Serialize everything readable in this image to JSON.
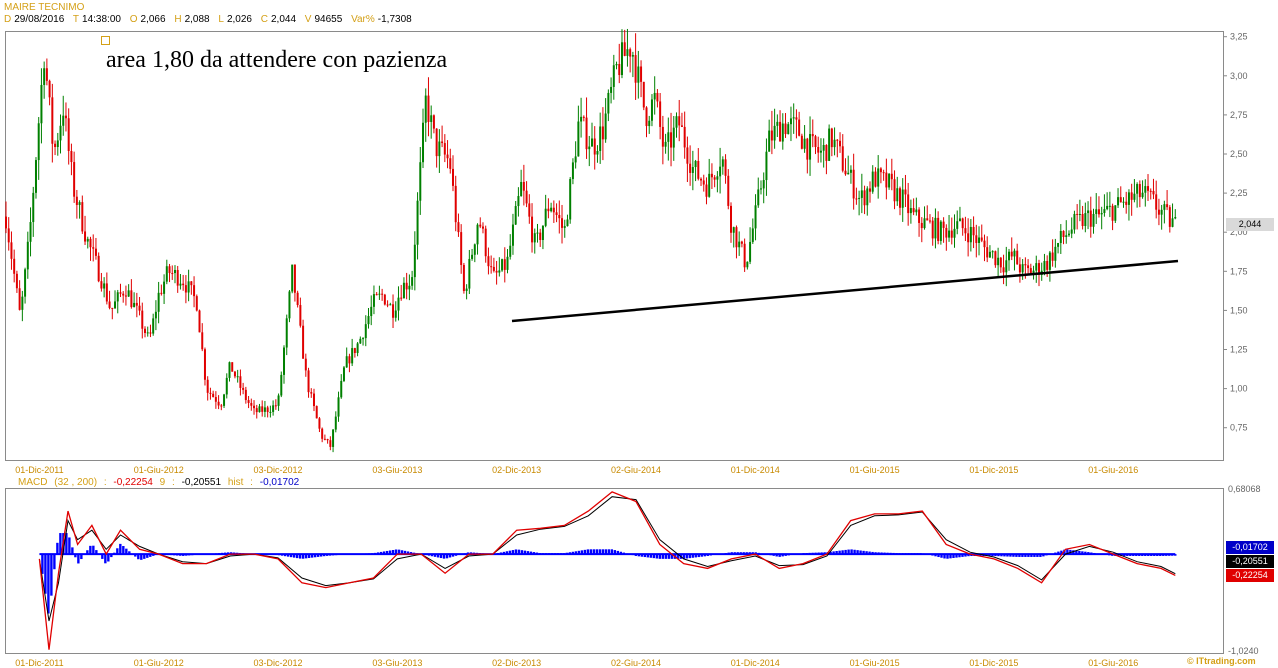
{
  "header": {
    "title": "MAIRE TECNIMO",
    "fields": [
      {
        "key": "D",
        "value": "29/08/2016"
      },
      {
        "key": "T",
        "value": "14:38:00"
      },
      {
        "key": "O",
        "value": "2,066"
      },
      {
        "key": "H",
        "value": "2,088"
      },
      {
        "key": "L",
        "value": "2,026"
      },
      {
        "key": "C",
        "value": "2,044"
      },
      {
        "key": "V",
        "value": "94655"
      },
      {
        "key": "Var%",
        "value": "-1,7308"
      }
    ]
  },
  "annotation": "area 1,80 da attendere con pazienza",
  "last_price_label": "2,044",
  "macd_header": {
    "name": "MACD",
    "params": "(32 , 200)",
    "macd_value": "-0,22254",
    "signal_name": "9",
    "signal_value": "-0,20551",
    "hist_name": "hist",
    "hist_value": "-0,01702"
  },
  "macd_badges": {
    "hist": "-0,01702",
    "signal": "-0,20551",
    "macd": "-0,22254"
  },
  "copyright": "© ITtrading.com",
  "colors": {
    "up": "#008000",
    "down": "#e00000",
    "trendline": "#000000",
    "macd": "#e00000",
    "signal": "#000000",
    "hist": "#0000ff"
  },
  "chart_data": [
    {
      "type": "line",
      "series_style": "candlestick",
      "ylim": [
        0.55,
        3.28
      ],
      "yticks": [
        "3,25",
        "3,00",
        "2,75",
        "2,50",
        "2,25",
        "2,00",
        "1,75",
        "1,50",
        "1,25",
        "1,00",
        "0,75"
      ],
      "ytick_values": [
        3.25,
        3.0,
        2.75,
        2.5,
        2.25,
        2.0,
        1.75,
        1.5,
        1.25,
        1.0,
        0.75
      ],
      "xlabels": [
        "01-Dic-2011",
        "01-Giu-2012",
        "03-Dic-2012",
        "03-Giu-2013",
        "02-Dic-2013",
        "02-Giu-2014",
        "01-Dic-2014",
        "01-Giu-2015",
        "01-Dic-2015",
        "01-Giu-2016"
      ],
      "xlabel_t": [
        0.0,
        0.5,
        1.0,
        1.5,
        2.0,
        2.5,
        3.0,
        3.5,
        4.0,
        4.5
      ],
      "xlim": [
        -0.14,
        4.96
      ],
      "x": [
        -0.14,
        -0.08,
        -0.04,
        0.02,
        0.06,
        0.1,
        0.14,
        0.2,
        0.26,
        0.3,
        0.36,
        0.42,
        0.46,
        0.5,
        0.54,
        0.6,
        0.66,
        0.7,
        0.76,
        0.8,
        0.86,
        0.9,
        0.96,
        1.0,
        1.06,
        1.12,
        1.18,
        1.22,
        1.28,
        1.34,
        1.4,
        1.44,
        1.48,
        1.52,
        1.56,
        1.62,
        1.66,
        1.72,
        1.78,
        1.84,
        1.9,
        1.96,
        2.02,
        2.08,
        2.14,
        2.2,
        2.26,
        2.32,
        2.36,
        2.42,
        2.48,
        2.54,
        2.58,
        2.62,
        2.68,
        2.74,
        2.8,
        2.86,
        2.9,
        2.96,
        3.0,
        3.06,
        3.12,
        3.18,
        3.22,
        3.28,
        3.32,
        3.38,
        3.44,
        3.5,
        3.56,
        3.62,
        3.66,
        3.72,
        3.78,
        3.84,
        3.9,
        3.96,
        4.0,
        4.04,
        4.08,
        4.12,
        4.16,
        4.22,
        4.28,
        4.34,
        4.4,
        4.44,
        4.5,
        4.56,
        4.62,
        4.66,
        4.72,
        4.76
      ],
      "close": [
        2.1,
        1.45,
        2.0,
        3.15,
        2.5,
        2.8,
        2.3,
        1.95,
        1.7,
        1.5,
        1.65,
        1.45,
        1.3,
        1.6,
        1.75,
        1.7,
        1.55,
        1.0,
        0.9,
        1.15,
        0.95,
        0.85,
        0.87,
        0.9,
        1.75,
        1.05,
        0.7,
        0.63,
        1.15,
        1.3,
        1.55,
        1.6,
        1.5,
        1.65,
        1.7,
        2.85,
        2.55,
        2.45,
        1.6,
        2.1,
        1.7,
        1.8,
        2.3,
        1.9,
        2.2,
        2.0,
        2.7,
        2.55,
        2.65,
        3.05,
        3.2,
        2.75,
        2.85,
        2.5,
        2.7,
        2.4,
        2.3,
        2.5,
        2.05,
        1.8,
        2.1,
        2.6,
        2.7,
        2.65,
        2.55,
        2.5,
        2.6,
        2.4,
        2.2,
        2.35,
        2.3,
        2.2,
        2.1,
        2.05,
        2.0,
        2.044,
        2.0,
        1.9,
        1.85,
        1.8,
        1.85,
        1.75,
        1.75,
        1.8,
        1.95,
        2.05,
        2.1,
        2.1,
        2.15,
        2.2,
        2.25,
        2.2,
        2.1,
        2.044
      ]
    },
    {
      "type": "line",
      "title": "MACD",
      "ylim": [
        -1.024,
        0.68068
      ],
      "yticks": [
        "0,68068",
        "-1,0240"
      ],
      "ytick_values": [
        0.68068,
        -1.024
      ],
      "xlabels": [
        "01-Dic-2011",
        "01-Giu-2012",
        "03-Dic-2012",
        "03-Giu-2013",
        "02-Dic-2013",
        "02-Giu-2014",
        "01-Dic-2014",
        "01-Giu-2015",
        "01-Dic-2015",
        "01-Giu-2016"
      ],
      "xlabel_t": [
        0.0,
        0.5,
        1.0,
        1.5,
        2.0,
        2.5,
        3.0,
        3.5,
        4.0,
        4.5
      ],
      "xlim": [
        -0.14,
        4.96
      ],
      "x": [
        0.0,
        0.04,
        0.08,
        0.12,
        0.16,
        0.22,
        0.28,
        0.34,
        0.42,
        0.5,
        0.6,
        0.7,
        0.8,
        0.9,
        1.0,
        1.1,
        1.2,
        1.3,
        1.4,
        1.5,
        1.6,
        1.7,
        1.8,
        1.9,
        2.0,
        2.1,
        2.2,
        2.3,
        2.4,
        2.5,
        2.6,
        2.7,
        2.8,
        2.9,
        3.0,
        3.1,
        3.2,
        3.3,
        3.4,
        3.5,
        3.6,
        3.7,
        3.8,
        3.9,
        4.0,
        4.1,
        4.2,
        4.3,
        4.4,
        4.5,
        4.6,
        4.7,
        4.76
      ],
      "series": [
        {
          "name": "MACD",
          "values": [
            -0.05,
            -1.0,
            -0.2,
            0.45,
            0.1,
            0.3,
            0.0,
            0.25,
            0.05,
            0.0,
            -0.1,
            -0.1,
            0.0,
            0.0,
            -0.05,
            -0.3,
            -0.35,
            -0.3,
            -0.25,
            0.0,
            0.0,
            -0.2,
            0.0,
            0.0,
            0.25,
            0.27,
            0.3,
            0.45,
            0.65,
            0.55,
            0.1,
            -0.1,
            -0.15,
            -0.05,
            0.0,
            -0.15,
            -0.1,
            0.0,
            0.35,
            0.42,
            0.42,
            0.45,
            0.1,
            0.0,
            -0.05,
            -0.15,
            -0.3,
            0.05,
            0.1,
            0.0,
            -0.1,
            -0.15,
            -0.22254
          ]
        },
        {
          "name": "9",
          "values": [
            -0.05,
            -0.7,
            -0.3,
            0.35,
            0.15,
            0.25,
            0.05,
            0.2,
            0.08,
            0.0,
            -0.08,
            -0.1,
            -0.02,
            0.0,
            -0.04,
            -0.25,
            -0.33,
            -0.3,
            -0.26,
            -0.05,
            0.0,
            -0.15,
            -0.02,
            0.0,
            0.2,
            0.26,
            0.29,
            0.4,
            0.6,
            0.57,
            0.15,
            -0.05,
            -0.13,
            -0.07,
            -0.02,
            -0.12,
            -0.11,
            -0.02,
            0.3,
            0.4,
            0.41,
            0.44,
            0.15,
            0.02,
            -0.03,
            -0.12,
            -0.27,
            0.0,
            0.08,
            0.02,
            -0.08,
            -0.13,
            -0.20551
          ]
        }
      ]
    }
  ]
}
